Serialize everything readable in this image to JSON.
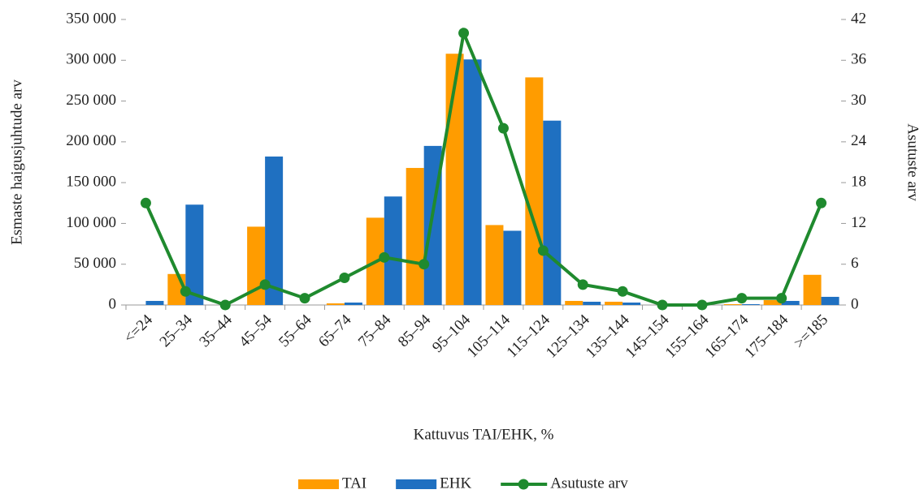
{
  "chart_data": {
    "type": "bar",
    "x_label": "Kattuvus TAI/EHK, %",
    "y_label": "Esmaste haigusjuhtude arv",
    "y2_label": "Asutuste arv",
    "categories": [
      "<=24",
      "25–34",
      "35–44",
      "45–54",
      "55–64",
      "65–74",
      "75–84",
      "85–94",
      "95–104",
      "105–114",
      "115–124",
      "125–134",
      "135–144",
      "145–154",
      "155–164",
      "165–174",
      "175–184",
      ">=185"
    ],
    "series": [
      {
        "name": "TAI",
        "type": "bar",
        "color": "#ff9c00",
        "values": [
          0,
          38000,
          0,
          96000,
          0,
          2000,
          107000,
          168000,
          308000,
          98000,
          279000,
          5000,
          4000,
          0,
          0,
          1000,
          6000,
          37000
        ]
      },
      {
        "name": "EHK",
        "type": "bar",
        "color": "#1f70c1",
        "values": [
          5000,
          123000,
          0,
          182000,
          0,
          3000,
          133000,
          195000,
          301000,
          91000,
          226000,
          4000,
          3000,
          0,
          0,
          1000,
          5000,
          10000
        ]
      },
      {
        "name": "Asutuste arv",
        "type": "line",
        "axis": "y2",
        "color": "#1f8a2e",
        "values": [
          15,
          2,
          0,
          3,
          1,
          4,
          7,
          6,
          40,
          26,
          8,
          3,
          2,
          0,
          0,
          1,
          1,
          15
        ]
      }
    ],
    "ylim": [
      0,
      350000
    ],
    "yticks": [
      0,
      {
        "value": 50000,
        "label": "50 000"
      },
      {
        "value": 100000,
        "label": "100 000"
      },
      {
        "value": 150000,
        "label": "150 000"
      },
      {
        "value": 200000,
        "label": "200 000"
      },
      {
        "value": 250000,
        "label": "250 000"
      },
      {
        "value": 300000,
        "label": "300 000"
      },
      {
        "value": 350000,
        "label": "350 000"
      }
    ],
    "y2lim": [
      0,
      42
    ],
    "y2ticks": [
      0,
      6,
      12,
      18,
      24,
      30,
      36,
      42
    ],
    "grid": false,
    "legend": "bottom"
  }
}
